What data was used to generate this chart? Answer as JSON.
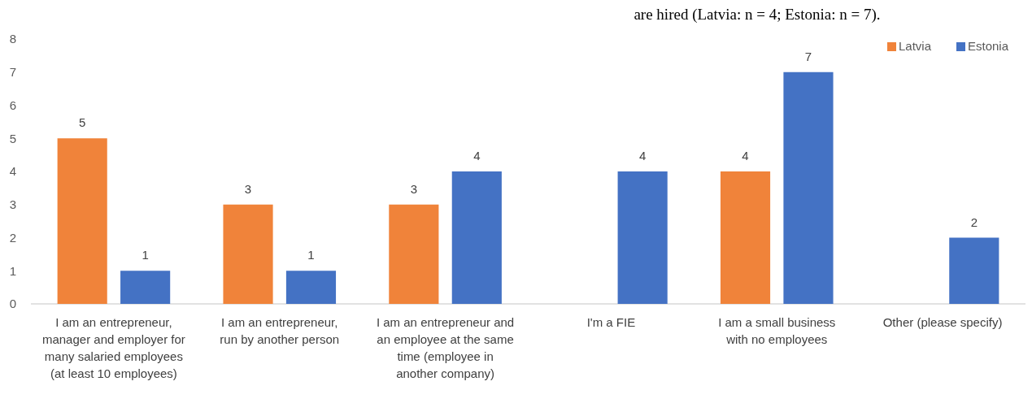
{
  "chart_data": {
    "type": "bar",
    "title": "are hired (Latvia: n = 4; Estonia: n = 7).",
    "categories": [
      "I am an entrepreneur, manager and employer for many salaried employees (at least 10 employees)",
      "I am an entrepreneur, run by another person",
      "I am an entrepreneur and an employee at the same time (employee in another company)",
      "I'm a FIE",
      "I am a small business with no employees",
      "Other (please specify)"
    ],
    "series": [
      {
        "name": "Latvia",
        "color": "#f0833a",
        "values": [
          5,
          3,
          3,
          null,
          4,
          null
        ]
      },
      {
        "name": "Estonia",
        "color": "#4472c4",
        "values": [
          1,
          1,
          4,
          4,
          7,
          2
        ]
      }
    ],
    "ylim": [
      0,
      8
    ],
    "yticks": [
      0,
      1,
      2,
      3,
      4,
      5,
      6,
      7,
      8
    ],
    "grid": false,
    "legend": "top right",
    "data_labels": true
  }
}
